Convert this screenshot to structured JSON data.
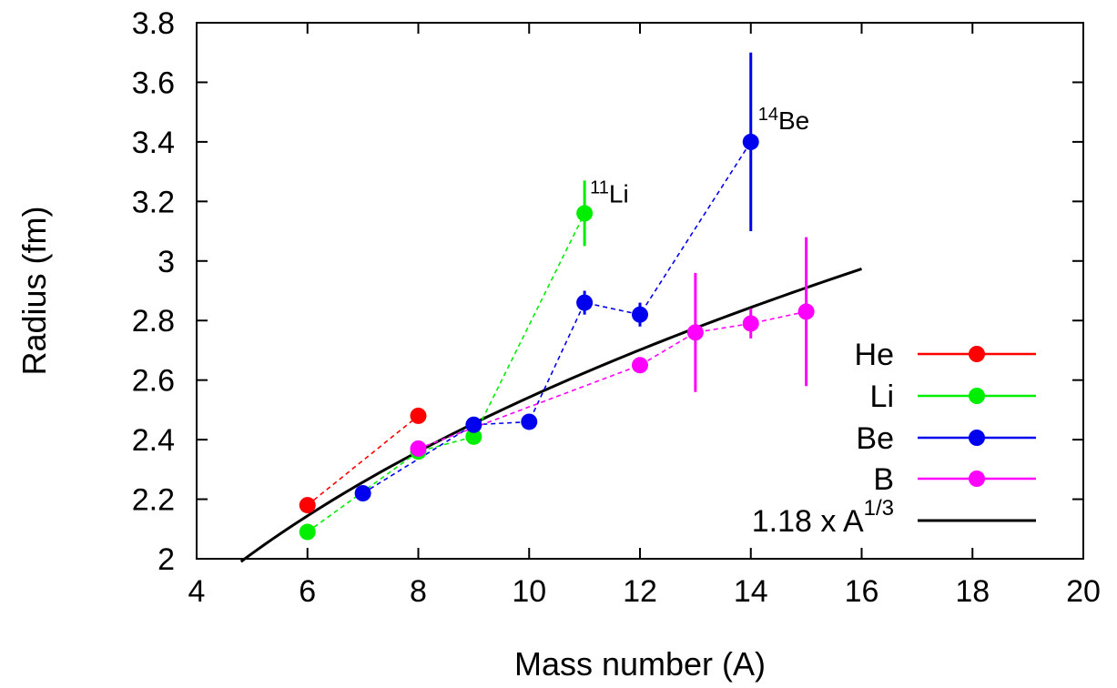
{
  "chart_data": {
    "type": "scatter",
    "xlabel": "Mass number (A)",
    "ylabel": "Radius (fm)",
    "xlim": [
      4,
      20
    ],
    "ylim": [
      2,
      3.8
    ],
    "xticks": [
      4,
      6,
      8,
      10,
      12,
      14,
      16,
      18,
      20
    ],
    "xtick_labels": [
      "4",
      "6",
      "8",
      "10",
      "12",
      "14",
      "16",
      "18",
      "20"
    ],
    "yticks": [
      2.0,
      2.2,
      2.4,
      2.6,
      2.8,
      3.0,
      3.2,
      3.4,
      3.6,
      3.8
    ],
    "ytick_labels": [
      "2",
      "2.2",
      "2.4",
      "2.6",
      "2.8",
      "3",
      "3.2",
      "3.4",
      "3.6",
      "3.8"
    ],
    "grid": false,
    "legend_position": "bottom-right",
    "series": [
      {
        "name": "He",
        "color": "#ff0000",
        "points": [
          {
            "x": 6,
            "y": 2.18,
            "err": 0
          },
          {
            "x": 8,
            "y": 2.48,
            "err": 0
          }
        ]
      },
      {
        "name": "Li",
        "color": "#00ee00",
        "points": [
          {
            "x": 6,
            "y": 2.09,
            "err": 0
          },
          {
            "x": 8,
            "y": 2.36,
            "err": 0
          },
          {
            "x": 9,
            "y": 2.41,
            "err": 0
          },
          {
            "x": 11,
            "y": 3.16,
            "err": 0.11
          }
        ]
      },
      {
        "name": "Be",
        "color": "#0000ee",
        "points": [
          {
            "x": 7,
            "y": 2.22,
            "err": 0
          },
          {
            "x": 9,
            "y": 2.45,
            "err": 0
          },
          {
            "x": 10,
            "y": 2.46,
            "err": 0
          },
          {
            "x": 11,
            "y": 2.86,
            "err": 0.04
          },
          {
            "x": 12,
            "y": 2.82,
            "err": 0.04
          },
          {
            "x": 14,
            "y": 3.4,
            "err": 0.3
          }
        ]
      },
      {
        "name": "B",
        "color": "#ff00ff",
        "points": [
          {
            "x": 8,
            "y": 2.37,
            "err": 0
          },
          {
            "x": 12,
            "y": 2.65,
            "err": 0
          },
          {
            "x": 13,
            "y": 2.76,
            "err": 0.2
          },
          {
            "x": 14,
            "y": 2.79,
            "err": 0.05
          },
          {
            "x": 15,
            "y": 2.83,
            "err": 0.25
          }
        ]
      }
    ],
    "fit_curve": {
      "name_main": "1.18 x A",
      "name_exponent": "1/3",
      "coefficient": 1.18,
      "exponent_value": 0.3333333,
      "x_range": [
        4.8,
        16
      ],
      "color": "#000000"
    },
    "annotations": [
      {
        "mass": "11",
        "symbol": "Li",
        "x": 11,
        "y": 3.16
      },
      {
        "mass": "14",
        "symbol": "Be",
        "x": 14,
        "y": 3.4
      }
    ]
  }
}
